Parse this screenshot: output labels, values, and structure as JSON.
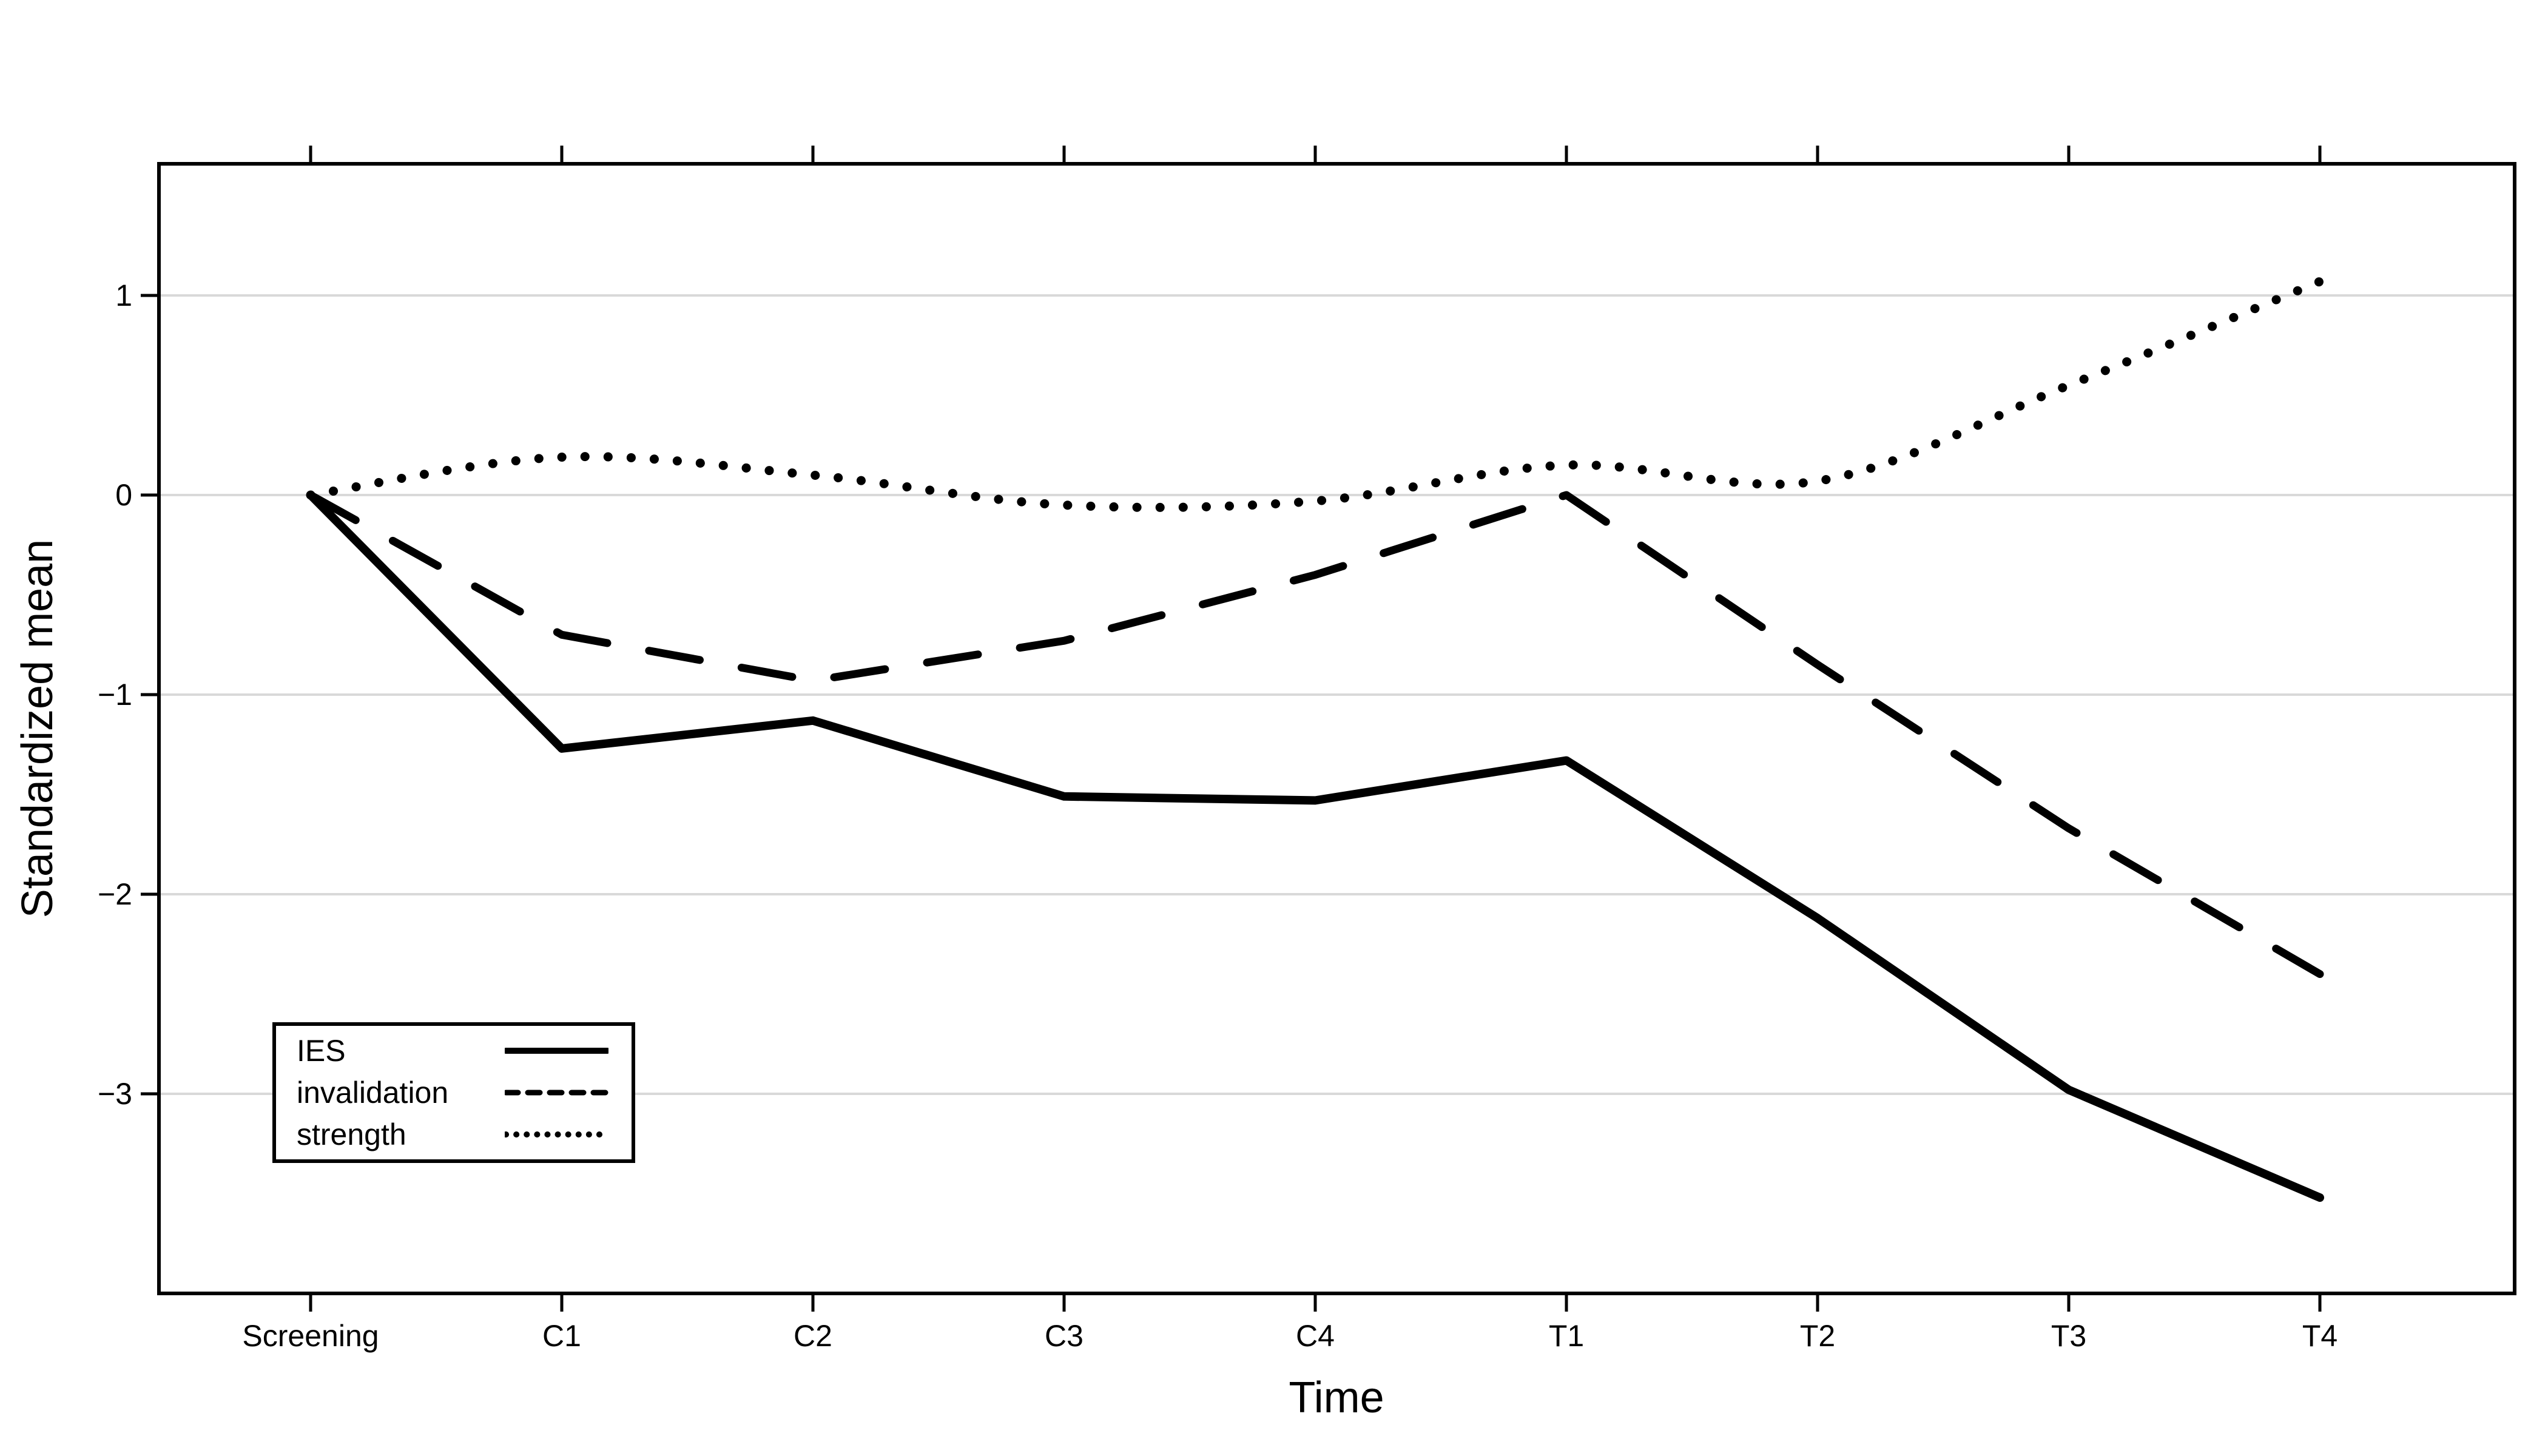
{
  "figure": {
    "background": "#ffffff",
    "axis_color": "#000000",
    "grid_color": "#d9d9d9",
    "line_color": "#000000"
  },
  "chart_data": {
    "type": "line",
    "title": "",
    "xlabel": "Time",
    "ylabel": "Standardized mean",
    "categories": [
      "Screening",
      "C1",
      "C2",
      "C3",
      "C4",
      "T1",
      "T2",
      "T3",
      "T4"
    ],
    "yticks": [
      1,
      0,
      -1,
      -2,
      -3
    ],
    "ytick_labels": [
      "1",
      "0",
      "−1",
      "−2",
      "−3"
    ],
    "ylim": [
      -4.0,
      1.66
    ],
    "grid": "horizontal-gridlines-only",
    "legend_position": "lower-left",
    "series": [
      {
        "name": "IES",
        "style": "solid",
        "smooth": false,
        "values": [
          0,
          -1.27,
          -1.13,
          -1.51,
          -1.53,
          -1.33,
          -2.12,
          -2.98,
          -3.52
        ]
      },
      {
        "name": "invalidation",
        "style": "dashed",
        "smooth": false,
        "values": [
          0,
          -0.7,
          -0.93,
          -0.73,
          -0.4,
          0.0,
          -0.85,
          -1.67,
          -2.4
        ]
      },
      {
        "name": "strength",
        "style": "dotted",
        "smooth": true,
        "values": [
          0,
          0.19,
          0.1,
          -0.05,
          -0.03,
          0.15,
          0.07,
          0.55,
          1.07
        ]
      }
    ]
  }
}
